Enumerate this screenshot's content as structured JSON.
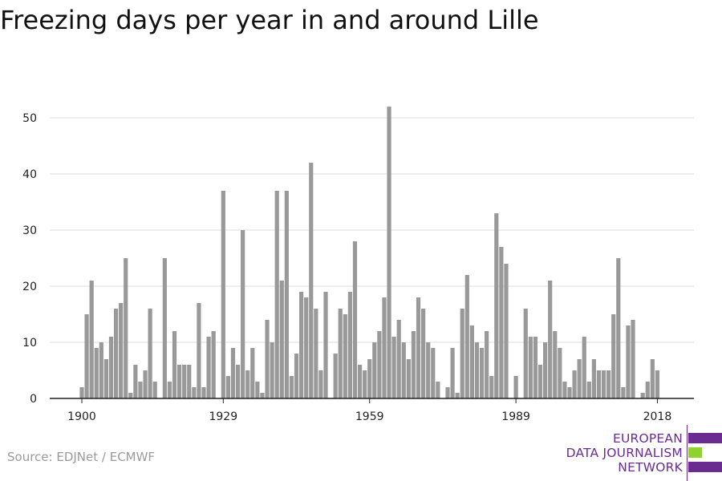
{
  "title": "Freezing days per year in and around Lille",
  "source": "Source: EDJNet / ECMWF",
  "logo": {
    "lines": [
      "EUROPEAN",
      "DATA JOURNALISM",
      "NETWORK"
    ],
    "colors": {
      "purple": "#6a2c91",
      "green": "#8fd12e"
    }
  },
  "colors": {
    "bar": "#999999",
    "grid": "#dddddd",
    "axis": "#222222"
  },
  "chart_data": {
    "type": "bar",
    "x_start": 1900,
    "x_end": 2018,
    "years": [
      1900,
      1901,
      1902,
      1903,
      1904,
      1905,
      1906,
      1907,
      1908,
      1909,
      1910,
      1911,
      1912,
      1913,
      1914,
      1915,
      1916,
      1917,
      1918,
      1919,
      1920,
      1921,
      1922,
      1923,
      1924,
      1925,
      1926,
      1927,
      1928,
      1929,
      1930,
      1931,
      1932,
      1933,
      1934,
      1935,
      1936,
      1937,
      1938,
      1939,
      1940,
      1941,
      1942,
      1943,
      1944,
      1945,
      1946,
      1947,
      1948,
      1949,
      1950,
      1951,
      1952,
      1953,
      1954,
      1955,
      1956,
      1957,
      1958,
      1959,
      1960,
      1961,
      1962,
      1963,
      1964,
      1965,
      1966,
      1967,
      1968,
      1969,
      1970,
      1971,
      1972,
      1973,
      1974,
      1975,
      1976,
      1977,
      1978,
      1979,
      1980,
      1981,
      1982,
      1983,
      1984,
      1985,
      1986,
      1987,
      1988,
      1989,
      1990,
      1991,
      1992,
      1993,
      1994,
      1995,
      1996,
      1997,
      1998,
      1999,
      2000,
      2001,
      2002,
      2003,
      2004,
      2005,
      2006,
      2007,
      2008,
      2009,
      2010,
      2011,
      2012,
      2013,
      2014,
      2015,
      2016,
      2017,
      2018
    ],
    "values": [
      2,
      15,
      21,
      9,
      10,
      7,
      11,
      16,
      17,
      25,
      1,
      6,
      3,
      5,
      16,
      3,
      0,
      25,
      3,
      12,
      6,
      6,
      6,
      2,
      17,
      2,
      11,
      12,
      0,
      37,
      4,
      9,
      6,
      30,
      5,
      9,
      3,
      1,
      14,
      10,
      37,
      21,
      37,
      4,
      8,
      19,
      18,
      42,
      16,
      5,
      19,
      0,
      8,
      16,
      15,
      19,
      28,
      6,
      5,
      7,
      10,
      12,
      18,
      52,
      11,
      14,
      10,
      7,
      12,
      18,
      16,
      10,
      9,
      3,
      0,
      2,
      9,
      1,
      16,
      22,
      13,
      10,
      9,
      12,
      4,
      33,
      27,
      24,
      0,
      4,
      0,
      16,
      11,
      11,
      6,
      10,
      21,
      12,
      9,
      3,
      2,
      5,
      7,
      11,
      3,
      7,
      5,
      5,
      5,
      15,
      25,
      2,
      13,
      14,
      0,
      1,
      3,
      7,
      5
    ],
    "x_ticks": [
      1900,
      1929,
      1959,
      1989,
      2018
    ],
    "y_ticks": [
      0,
      10,
      20,
      30,
      40,
      50
    ],
    "ylim": [
      0,
      55
    ],
    "grid": true,
    "xlabel": "",
    "ylabel": ""
  }
}
